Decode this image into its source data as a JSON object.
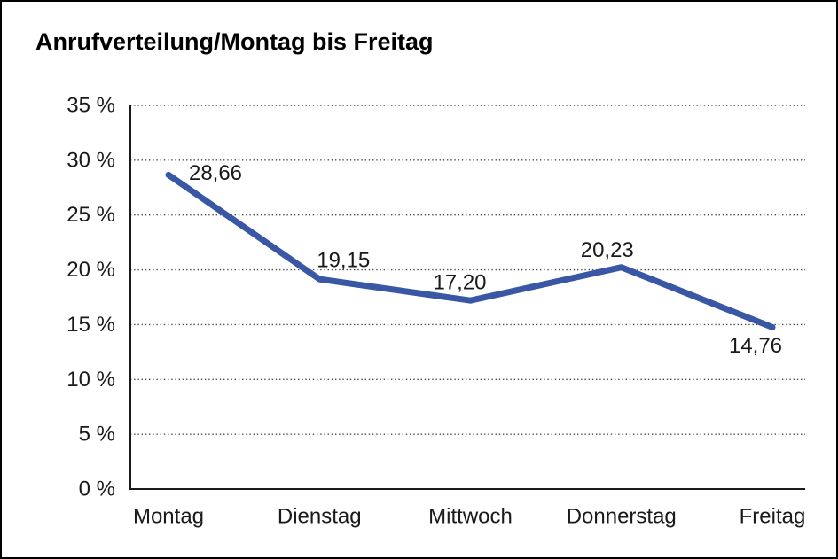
{
  "title": "Anrufverteilung/Montag bis Freitag",
  "chart_data": {
    "type": "line",
    "title": "Anrufverteilung/Montag bis Freitag",
    "categories": [
      "Montag",
      "Dienstag",
      "Mittwoch",
      "Donnerstag",
      "Freitag"
    ],
    "values": [
      28.66,
      19.15,
      17.2,
      20.23,
      14.76
    ],
    "value_labels": [
      "28,66",
      "19,15",
      "17,20",
      "20,23",
      "14,76"
    ],
    "xlabel": "",
    "ylabel": "",
    "ylim": [
      0,
      35
    ],
    "y_tick_step": 5,
    "y_tick_labels": [
      "0 %",
      "5 %",
      "10 %",
      "15 %",
      "20 %",
      "25 %",
      "30 %",
      "35 %"
    ],
    "grid": "horizontal-dotted",
    "legend": "none",
    "line_color": "#3A57A5",
    "axis_color": "#1a1a1a",
    "grid_color": "#4a4a4a",
    "text_color": "#1a1a1a",
    "background_color": "#ffffff"
  }
}
